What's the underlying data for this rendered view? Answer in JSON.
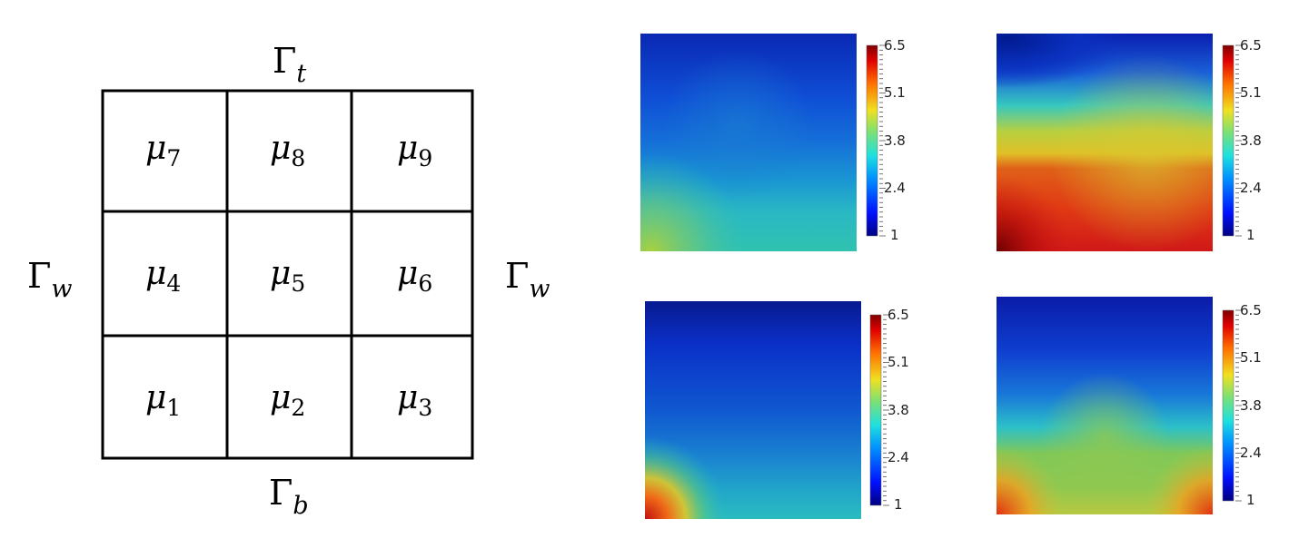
{
  "diagram": {
    "boundaries": {
      "top": {
        "symbol": "Γ",
        "sub": "t"
      },
      "bottom": {
        "symbol": "Γ",
        "sub": "b"
      },
      "left": {
        "symbol": "Γ",
        "sub": "w"
      },
      "right": {
        "symbol": "Γ",
        "sub": "w"
      }
    },
    "cells": [
      {
        "symbol": "μ",
        "sub": "7"
      },
      {
        "symbol": "μ",
        "sub": "8"
      },
      {
        "symbol": "μ",
        "sub": "9"
      },
      {
        "symbol": "μ",
        "sub": "4"
      },
      {
        "symbol": "μ",
        "sub": "5"
      },
      {
        "symbol": "μ",
        "sub": "6"
      },
      {
        "symbol": "μ",
        "sub": "1"
      },
      {
        "symbol": "μ",
        "sub": "2"
      },
      {
        "symbol": "μ",
        "sub": "3"
      }
    ]
  },
  "plots": [
    {
      "id": "top-left",
      "colorbar_ticks": [
        "6.5",
        "5.1",
        "3.8",
        "2.4",
        "1"
      ]
    },
    {
      "id": "top-right",
      "colorbar_ticks": [
        "6.5",
        "5.1",
        "3.8",
        "2.4",
        "1"
      ]
    },
    {
      "id": "bottom-left",
      "colorbar_ticks": [
        "6.5",
        "5.1",
        "3.8",
        "2.4",
        "1"
      ]
    },
    {
      "id": "bottom-right",
      "colorbar_ticks": [
        "6.5",
        "5.1",
        "3.8",
        "2.4",
        "1"
      ]
    }
  ],
  "colors": {
    "grid_line": "#000000",
    "jet_dark_blue": "#00007f",
    "jet_blue": "#0a3fd9",
    "jet_cyan": "#26c8cf",
    "jet_green": "#7fcf5a",
    "jet_yellow": "#e6d02a",
    "jet_orange": "#f07a1a",
    "jet_red": "#d21010",
    "jet_dark_red": "#7f0000"
  }
}
